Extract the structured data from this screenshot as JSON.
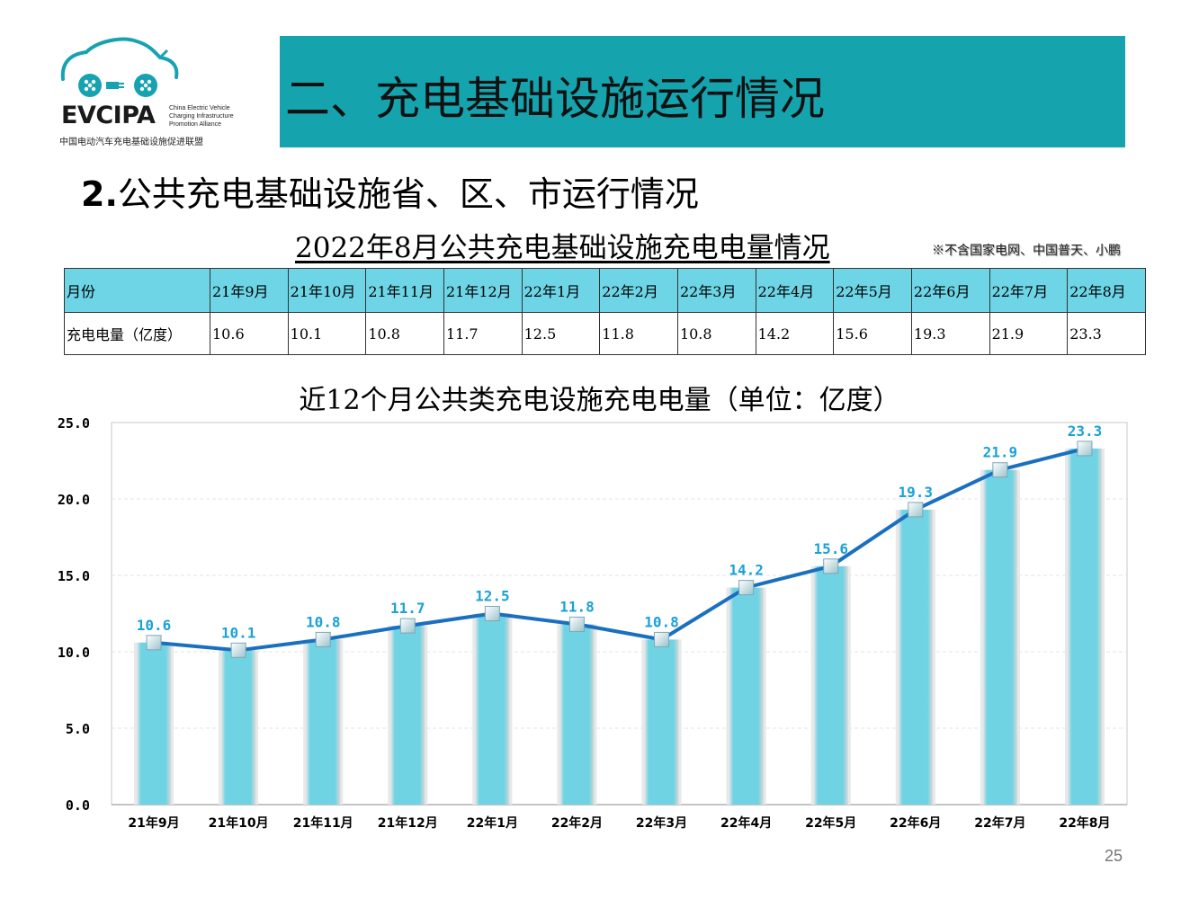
{
  "logo": {
    "wordmark": "EVCIPA",
    "subtitle_en": [
      "China Electric Vehicle",
      "Charging Infrastructure",
      "Promotion Alliance"
    ],
    "subtitle_cn": "中国电动汽车充电基础设施促进联盟"
  },
  "header": {
    "banner_title": "二、充电基础设施运行情况",
    "banner_color": "#15a3ae"
  },
  "section": {
    "number": "2.",
    "title": "公共充电基础设施省、区、市运行情况"
  },
  "table": {
    "title": "2022年8月公共充电基础设施充电电量情况",
    "note": "※不含国家电网、中国普天、小鹏",
    "header_label": "月份",
    "row_label": "充电电量（亿度）",
    "months": [
      "21年9月",
      "21年10月",
      "21年11月",
      "21年12月",
      "22年1月",
      "22年2月",
      "22年3月",
      "22年4月",
      "22年5月",
      "22年6月",
      "22年7月",
      "22年8月"
    ],
    "values": [
      "10.6",
      "10.1",
      "10.8",
      "11.7",
      "12.5",
      "11.8",
      "10.8",
      "14.2",
      "15.6",
      "19.3",
      "21.9",
      "23.3"
    ],
    "header_color": "#6dd5e6"
  },
  "chart_data": {
    "type": "bar",
    "title": "近12个月公共类充电设施充电电量（单位：亿度）",
    "categories": [
      "21年9月",
      "21年10月",
      "21年11月",
      "21年12月",
      "22年1月",
      "22年2月",
      "22年3月",
      "22年4月",
      "22年5月",
      "22年6月",
      "22年7月",
      "22年8月"
    ],
    "values": [
      10.6,
      10.1,
      10.8,
      11.7,
      12.5,
      11.8,
      10.8,
      14.2,
      15.6,
      19.3,
      21.9,
      23.3
    ],
    "overlay": "line",
    "ylim": [
      0,
      25
    ],
    "yticks": [
      "0.0",
      "5.0",
      "10.0",
      "15.0",
      "20.0",
      "25.0"
    ],
    "grid": true,
    "legend": "none",
    "bar_color": "#6fd3e3",
    "line_color": "#1b6fc0",
    "label_color": "#1aa1d8"
  },
  "footer": {
    "page_number": "25"
  }
}
